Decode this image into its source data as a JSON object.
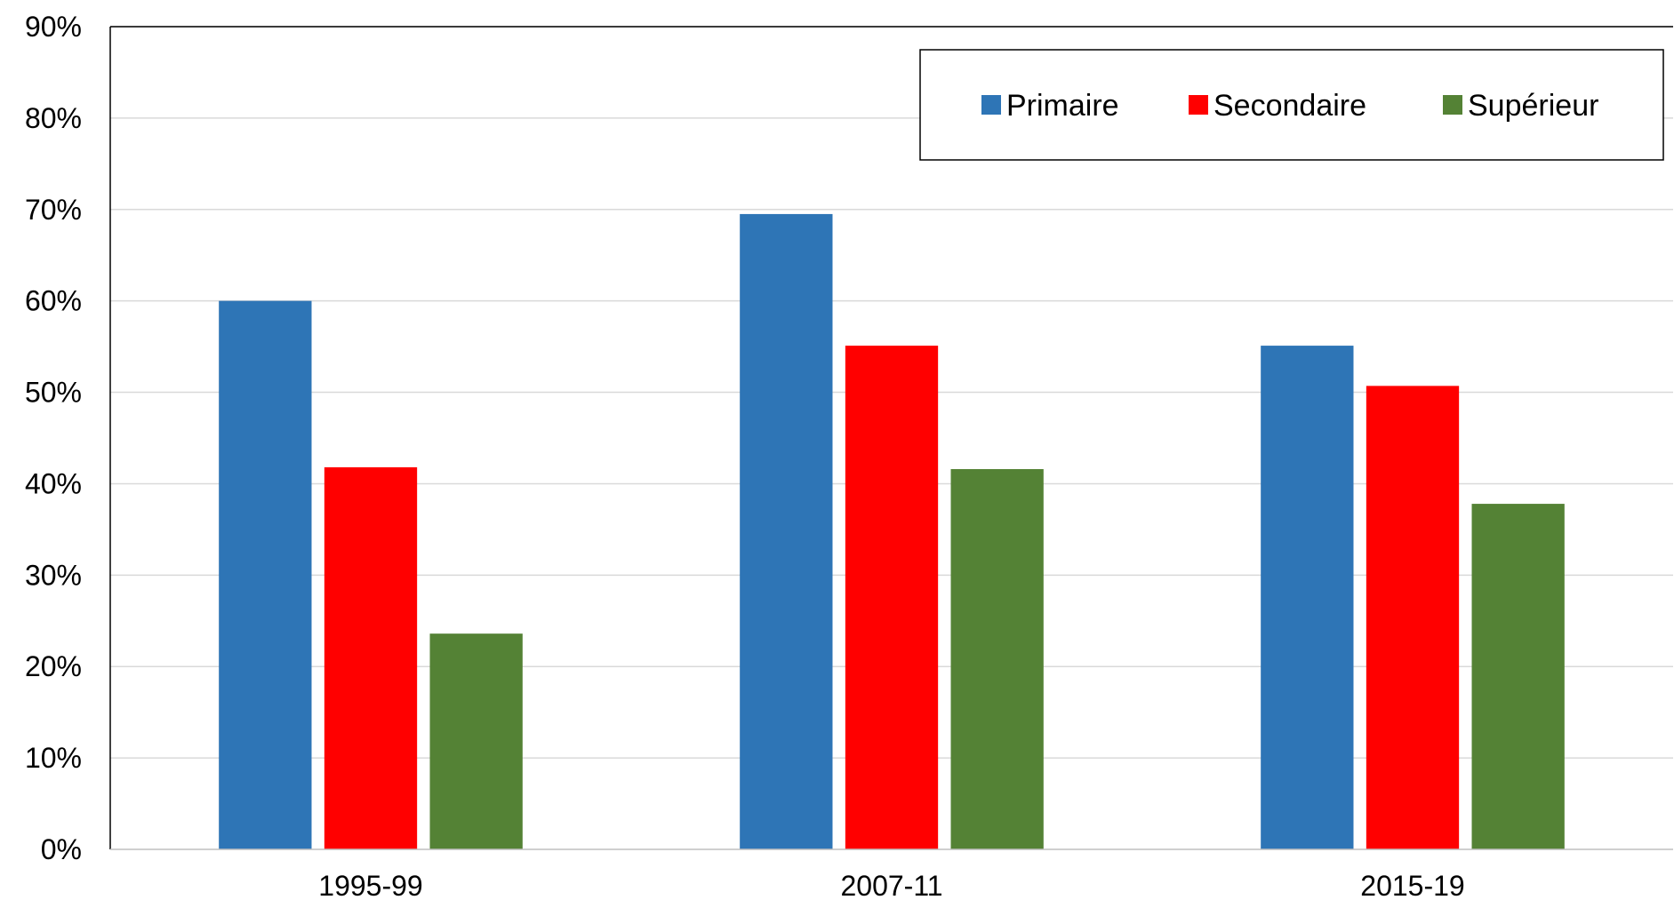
{
  "chart_data": {
    "type": "bar",
    "title": "",
    "xlabel": "",
    "ylabel": "",
    "categories": [
      "1995-99",
      "2007-11",
      "2015-19"
    ],
    "series": [
      {
        "name": "Primaire",
        "color": "#2E75B6",
        "values": [
          0.6,
          0.695,
          0.551
        ]
      },
      {
        "name": "Secondaire",
        "color": "#FF0000",
        "values": [
          0.418,
          0.551,
          0.507
        ]
      },
      {
        "name": "Supérieur",
        "color": "#548235",
        "values": [
          0.236,
          0.416,
          0.378
        ]
      }
    ],
    "ylim": [
      0,
      0.9
    ],
    "yticks": [
      {
        "value": 0.0,
        "label": "0%"
      },
      {
        "value": 0.1,
        "label": "10%"
      },
      {
        "value": 0.2,
        "label": "20%"
      },
      {
        "value": 0.3,
        "label": "30%"
      },
      {
        "value": 0.4,
        "label": "40%"
      },
      {
        "value": 0.5,
        "label": "50%"
      },
      {
        "value": 0.6,
        "label": "60%"
      },
      {
        "value": 0.7,
        "label": "70%"
      },
      {
        "value": 0.8,
        "label": "80%"
      },
      {
        "value": 0.9,
        "label": "90%"
      }
    ],
    "grid": true,
    "legend": {
      "placement": "top-right",
      "orientation": "horizontal",
      "boxed": true
    }
  }
}
